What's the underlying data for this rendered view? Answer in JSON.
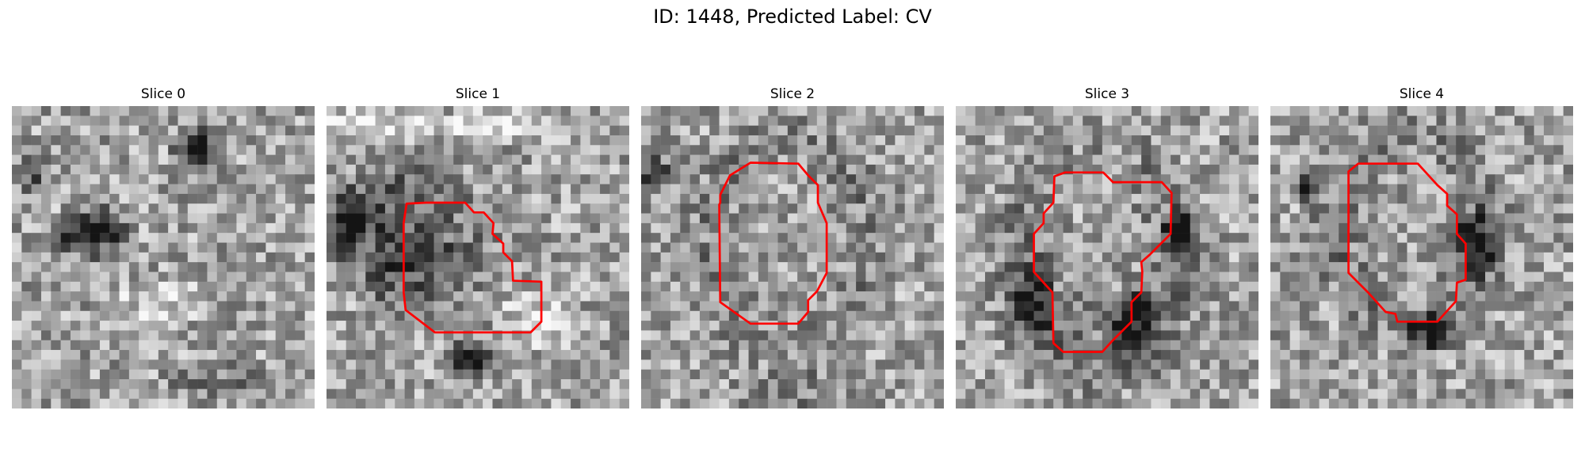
{
  "figure": {
    "title": "ID: 1448, Predicted Label: CV"
  },
  "panels": [
    {
      "title": "Slice 0",
      "has_contour": false
    },
    {
      "title": "Slice 1",
      "has_contour": true
    },
    {
      "title": "Slice 2",
      "has_contour": true
    },
    {
      "title": "Slice 3",
      "has_contour": true
    },
    {
      "title": "Slice 4",
      "has_contour": true
    }
  ],
  "colors": {
    "contour": "#ff0000",
    "background": "#ffffff"
  }
}
